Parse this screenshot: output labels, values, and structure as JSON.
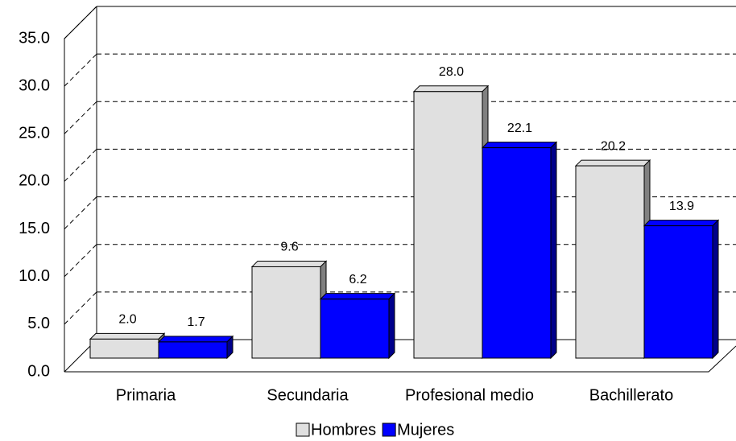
{
  "chart_data": {
    "type": "bar3d",
    "categories": [
      "Primaria",
      "Secundaria",
      "Profesional medio",
      "Bachillerato"
    ],
    "series": [
      {
        "name": "Hombres",
        "color": "#e0e0e0",
        "values": [
          2.0,
          9.6,
          28.0,
          20.2
        ],
        "value_labels": [
          "2.0",
          "9.6",
          "28.0",
          "20.2"
        ]
      },
      {
        "name": "Mujeres",
        "color": "#0000ff",
        "values": [
          1.7,
          6.2,
          22.1,
          13.9
        ],
        "value_labels": [
          "1.7",
          "6.2",
          "22.1",
          "13.9"
        ]
      }
    ],
    "ylim": [
      0,
      35
    ],
    "yticks": [
      {
        "value": 0,
        "label": "0.0"
      },
      {
        "value": 5,
        "label": "5.0"
      },
      {
        "value": 10,
        "label": "10.0"
      },
      {
        "value": 15,
        "label": "15.0"
      },
      {
        "value": 20,
        "label": "20.0"
      },
      {
        "value": 25,
        "label": "25.0"
      },
      {
        "value": 30,
        "label": "30.0"
      },
      {
        "value": 35,
        "label": "35.0"
      }
    ],
    "grid": true,
    "legend": "bottom"
  }
}
